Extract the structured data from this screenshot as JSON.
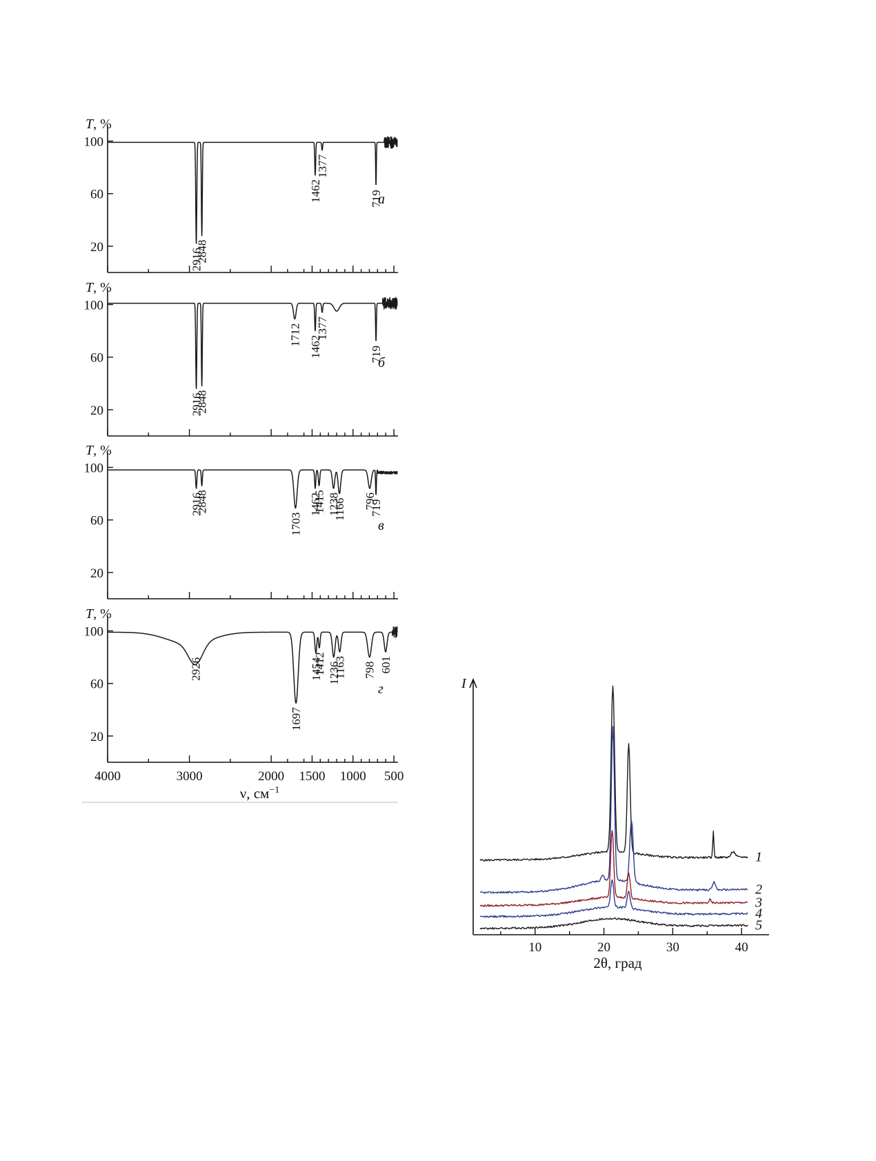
{
  "chart_data": [
    {
      "type": "line",
      "subtype": "ir-spectra-stack",
      "y_axis_label": "T, %",
      "x_axis_label": "ν, см",
      "x_axis_label_sup": "−1",
      "xlim": [
        4000,
        450
      ],
      "x_reversed": true,
      "ylim": [
        0,
        105
      ],
      "y_ticks": [
        100,
        60,
        20
      ],
      "x_ticks": [
        4000,
        3000,
        2000,
        1500,
        1000,
        500
      ],
      "x_tick_labels": [
        "4000",
        "3000",
        "2000",
        "1500",
        "1000",
        "500"
      ],
      "panels": [
        {
          "label": "а",
          "baseline": 99,
          "peaks": [
            {
              "x": 2916,
              "y": 22,
              "w": 9,
              "label": "2916"
            },
            {
              "x": 2848,
              "y": 28,
              "w": 8,
              "label": "2848"
            },
            {
              "x": 1462,
              "y": 74,
              "w": 8,
              "label": "1462"
            },
            {
              "x": 1377,
              "y": 93,
              "w": 8,
              "label": "1377"
            },
            {
              "x": 719,
              "y": 66,
              "w": 6,
              "label": "719"
            }
          ],
          "noise_from": 620
        },
        {
          "label": "б",
          "baseline": 101,
          "peaks": [
            {
              "x": 2916,
              "y": 36,
              "w": 9,
              "label": "2916"
            },
            {
              "x": 2848,
              "y": 38,
              "w": 8,
              "label": "2848"
            },
            {
              "x": 1712,
              "y": 89,
              "w": 22,
              "label": "1712"
            },
            {
              "x": 1462,
              "y": 80,
              "w": 9,
              "label": "1462"
            },
            {
              "x": 1377,
              "y": 94,
              "w": 10,
              "label": "1377"
            },
            {
              "x": 1200,
              "y": 95,
              "w": 45,
              "label": ""
            },
            {
              "x": 719,
              "y": 72,
              "w": 7,
              "label": "719"
            }
          ],
          "noise_from": 640
        },
        {
          "label": "в",
          "baseline": 98,
          "peaks": [
            {
              "x": 2916,
              "y": 84,
              "w": 10,
              "label": "2916"
            },
            {
              "x": 2848,
              "y": 86,
              "w": 9,
              "label": "2848"
            },
            {
              "x": 1703,
              "y": 69,
              "w": 28,
              "label": "1703"
            },
            {
              "x": 1462,
              "y": 84,
              "w": 10,
              "label": "1462"
            },
            {
              "x": 1415,
              "y": 86,
              "w": 12,
              "label": "1415"
            },
            {
              "x": 1238,
              "y": 84,
              "w": 20,
              "label": "1238"
            },
            {
              "x": 1166,
              "y": 80,
              "w": 22,
              "label": "1166"
            },
            {
              "x": 796,
              "y": 84,
              "w": 26,
              "label": "796"
            },
            {
              "x": 719,
              "y": 79,
              "w": 7,
              "label": "719"
            }
          ],
          "noise_from": 0
        },
        {
          "label": "г",
          "baseline": 99,
          "peaks": [
            {
              "x": 2926,
              "y": 83,
              "w": 120,
              "label": "2926"
            },
            {
              "x": 1697,
              "y": 45,
              "w": 38,
              "label": "1697"
            },
            {
              "x": 1454,
              "y": 83,
              "w": 16,
              "label": "1454"
            },
            {
              "x": 1412,
              "y": 87,
              "w": 14,
              "label": "1412"
            },
            {
              "x": 1236,
              "y": 80,
              "w": 24,
              "label": "1236"
            },
            {
              "x": 1163,
              "y": 84,
              "w": 22,
              "label": "1163"
            },
            {
              "x": 798,
              "y": 80,
              "w": 32,
              "label": "798"
            },
            {
              "x": 601,
              "y": 84,
              "w": 24,
              "label": "601"
            }
          ],
          "noise_from": 520
        }
      ]
    },
    {
      "type": "line",
      "subtype": "xrd-patterns",
      "y_axis_label": "I",
      "x_axis_label": "2θ, град",
      "xlim": [
        1,
        44
      ],
      "x_ticks": [
        10,
        20,
        30,
        40
      ],
      "x_tick_labels": [
        "10",
        "20",
        "30",
        "40"
      ],
      "series": [
        {
          "name": "1",
          "color": "#1a1a1a",
          "offset": 108,
          "peaks": [
            {
              "x": 21.3,
              "h": 240,
              "w": 0.35
            },
            {
              "x": 23.6,
              "h": 158,
              "w": 0.3
            },
            {
              "x": 35.9,
              "h": 38,
              "w": 0.12
            },
            {
              "x": 38.8,
              "h": 8,
              "w": 0.4
            }
          ],
          "amorphous": 10
        },
        {
          "name": "2",
          "color": "#2e3a8c",
          "offset": 61,
          "peaks": [
            {
              "x": 21.3,
              "h": 222,
              "w": 0.32
            },
            {
              "x": 24.0,
              "h": 90,
              "w": 0.35
            },
            {
              "x": 36.0,
              "h": 11,
              "w": 0.3
            },
            {
              "x": 19.8,
              "h": 8,
              "w": 0.3
            }
          ],
          "amorphous": 16
        },
        {
          "name": "3",
          "color": "#8e1f26",
          "offset": 42,
          "peaks": [
            {
              "x": 21.2,
              "h": 98,
              "w": 0.3
            },
            {
              "x": 23.6,
              "h": 36,
              "w": 0.3
            },
            {
              "x": 35.4,
              "h": 5,
              "w": 0.2
            }
          ],
          "amorphous": 10
        },
        {
          "name": "4",
          "color": "#2e3a8c",
          "offset": 26,
          "peaks": [
            {
              "x": 21.2,
              "h": 40,
              "w": 0.3
            },
            {
              "x": 23.6,
              "h": 24,
              "w": 0.3
            }
          ],
          "amorphous": 12
        },
        {
          "name": "5",
          "color": "#1a1a1a",
          "offset": 9,
          "peaks": [],
          "amorphous": 12
        }
      ]
    }
  ]
}
